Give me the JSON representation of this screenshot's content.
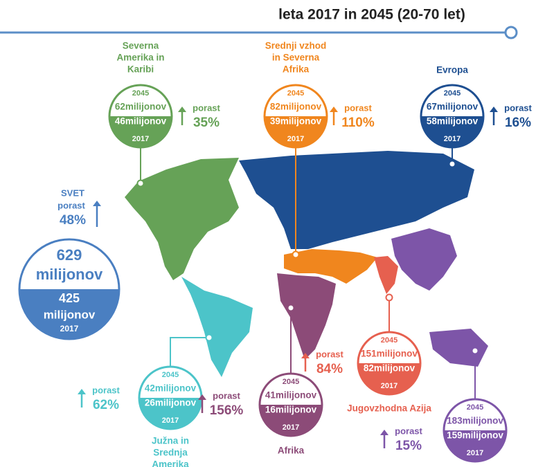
{
  "header": {
    "title": "leta 2017 in 2045 (20-70 let)"
  },
  "world": {
    "name": "SVET",
    "growth_label": "porast",
    "growth": "48%",
    "value_2045": [
      "629",
      "milijonov"
    ],
    "value_2017": [
      "425",
      "milijonov"
    ],
    "year_bottom": "2017",
    "color": "#4a7fc1"
  },
  "regions": [
    {
      "name": [
        "Severna",
        "Amerika in",
        "Karibi"
      ],
      "year_top": "2045",
      "value_2045": "62milijonov",
      "value_2017": "46milijonov",
      "year_bottom": "2017",
      "growth_label": "porast",
      "growth": "35%",
      "color": "#66a257"
    },
    {
      "name": [
        "Srednji vzhod",
        "in Severna",
        "Afrika"
      ],
      "year_top": "2045",
      "value_2045": "82milijonov",
      "value_2017": "39milijonov",
      "year_bottom": "2017",
      "growth_label": "porast",
      "growth": "110%",
      "color": "#f0861e"
    },
    {
      "name": [
        "Evropa"
      ],
      "year_top": "2045",
      "value_2045": "67milijonov",
      "value_2017": "58milijonov",
      "year_bottom": "2017",
      "growth_label": "porast",
      "growth": "16%",
      "color": "#1e4f91"
    },
    {
      "name": [
        "Južna in",
        "Srednja",
        "Amerika"
      ],
      "year_top": "2045",
      "value_2045": "42milijonov",
      "value_2017": "26milijonov",
      "year_bottom": "2017",
      "growth_label": "porast",
      "growth": "62%",
      "color": "#4cc4c9"
    },
    {
      "name": [
        "Afrika"
      ],
      "year_top": "2045",
      "value_2045": "41milijonov",
      "value_2017": "16milijonov",
      "year_bottom": "2017",
      "growth_label": "porast",
      "growth": "156%",
      "color": "#8c4b78"
    },
    {
      "name": [
        "Jugovzhodna Azija"
      ],
      "year_top": "2045",
      "value_2045": "151milijonov",
      "value_2017": "82milijonov",
      "year_bottom": "2017",
      "growth_label": "porast",
      "growth": "84%",
      "color": "#e6604f"
    },
    {
      "name": [],
      "year_top": "2045",
      "value_2045": "183milijonov",
      "value_2017": "159milijonov",
      "year_bottom": "2017",
      "growth_label": "porast",
      "growth": "15%",
      "color": "#7d55a8"
    }
  ]
}
